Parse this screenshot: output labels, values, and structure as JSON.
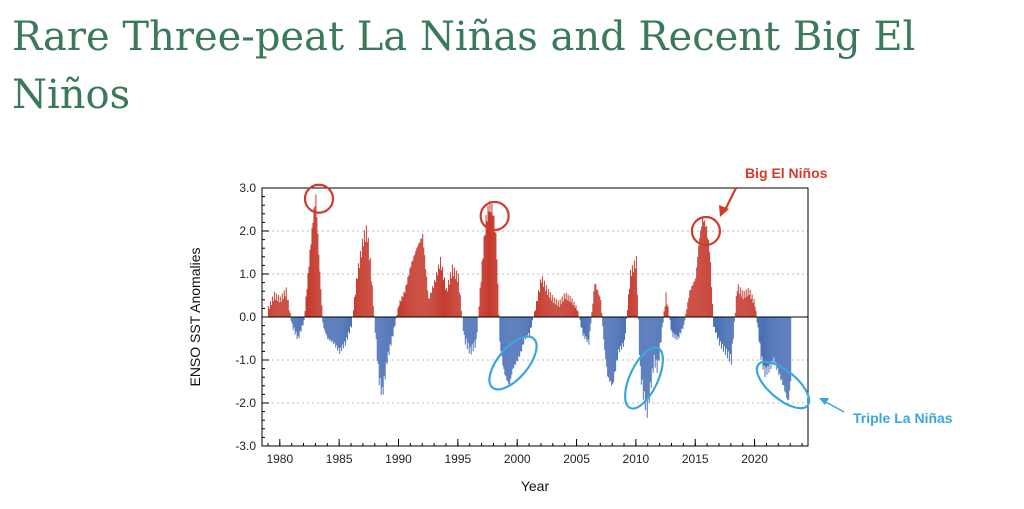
{
  "slide": {
    "title": "Rare Three-peat La Niñas and Recent Big El Niños"
  },
  "chart_data": {
    "type": "bar",
    "title": "",
    "xlabel": "Year",
    "ylabel": "ENSO SST Anomalies",
    "xlim": [
      1978.5,
      2024.5
    ],
    "ylim": [
      -3.0,
      3.0
    ],
    "x_ticks": [
      1980,
      1985,
      1990,
      1995,
      2000,
      2005,
      2010,
      2015,
      2020
    ],
    "y_ticks": [
      "3.0",
      "2.0",
      "1.0",
      "0.0",
      "-1.0",
      "-2.0",
      "-3.0"
    ],
    "grid": "horizontal-dotted",
    "positive_color": "#c53a2d",
    "negative_color": "#4a6fb5",
    "x": [
      1979.0,
      1979.5,
      1980.0,
      1980.5,
      1981.0,
      1981.5,
      1982.0,
      1982.5,
      1982.8,
      1983.0,
      1983.3,
      1983.6,
      1984.0,
      1984.5,
      1985.0,
      1985.5,
      1986.0,
      1986.5,
      1987.0,
      1987.3,
      1987.6,
      1988.0,
      1988.3,
      1988.6,
      1989.0,
      1989.5,
      1990.0,
      1990.5,
      1991.0,
      1991.5,
      1992.0,
      1992.5,
      1993.0,
      1993.5,
      1994.0,
      1994.5,
      1995.0,
      1995.5,
      1996.0,
      1996.5,
      1997.0,
      1997.3,
      1997.6,
      1997.9,
      1998.2,
      1998.5,
      1998.8,
      1999.0,
      1999.3,
      1999.6,
      2000.0,
      2000.3,
      2000.6,
      2001.0,
      2001.5,
      2002.0,
      2002.5,
      2003.0,
      2003.5,
      2004.0,
      2004.5,
      2005.0,
      2005.5,
      2006.0,
      2006.5,
      2007.0,
      2007.3,
      2007.6,
      2008.0,
      2008.5,
      2009.0,
      2009.5,
      2010.0,
      2010.3,
      2010.6,
      2010.9,
      2011.2,
      2011.5,
      2011.8,
      2012.0,
      2012.5,
      2013.0,
      2013.5,
      2014.0,
      2014.5,
      2015.0,
      2015.3,
      2015.6,
      2015.9,
      2016.2,
      2016.5,
      2017.0,
      2017.5,
      2018.0,
      2018.5,
      2019.0,
      2019.5,
      2020.0,
      2020.5,
      2020.8,
      2021.2,
      2021.6,
      2022.0,
      2022.4,
      2022.8,
      2023.0
    ],
    "values": [
      0.2,
      0.5,
      0.4,
      0.6,
      -0.2,
      -0.5,
      -0.1,
      1.5,
      2.4,
      2.8,
      1.2,
      -0.2,
      -0.5,
      -0.6,
      -0.8,
      -0.6,
      -0.2,
      1.0,
      1.8,
      2.0,
      1.2,
      -0.3,
      -1.4,
      -1.8,
      -1.0,
      -0.4,
      0.3,
      0.6,
      1.2,
      1.6,
      1.9,
      0.4,
      0.8,
      1.3,
      0.6,
      1.1,
      0.9,
      -0.5,
      -0.8,
      -0.6,
      1.2,
      2.2,
      2.6,
      2.5,
      1.8,
      -0.6,
      -1.2,
      -1.4,
      -1.6,
      -1.2,
      -1.0,
      -0.8,
      -0.5,
      -0.4,
      0.2,
      0.9,
      0.6,
      0.4,
      0.3,
      0.5,
      0.4,
      0.2,
      -0.4,
      -0.6,
      0.8,
      0.4,
      -0.7,
      -1.4,
      -1.6,
      -0.8,
      -0.6,
      1.0,
      1.3,
      -1.2,
      -1.8,
      -2.2,
      -1.6,
      -1.0,
      -1.2,
      -0.7,
      0.5,
      -0.4,
      -0.5,
      -0.2,
      0.6,
      0.9,
      1.8,
      2.3,
      2.1,
      1.5,
      -0.2,
      -0.6,
      -0.8,
      -1.0,
      0.7,
      0.5,
      0.6,
      0.3,
      -0.9,
      -1.3,
      -1.2,
      -1.0,
      -1.3,
      -1.6,
      -2.0,
      -1.5
    ],
    "annotations": [
      {
        "text": "Big El Niños",
        "target_years": [
          1983.3,
          1998.1,
          2015.9
        ]
      },
      {
        "text": "Triple La Niñas",
        "target_years": [
          1999.9,
          2011.2,
          2022.2
        ]
      }
    ]
  }
}
